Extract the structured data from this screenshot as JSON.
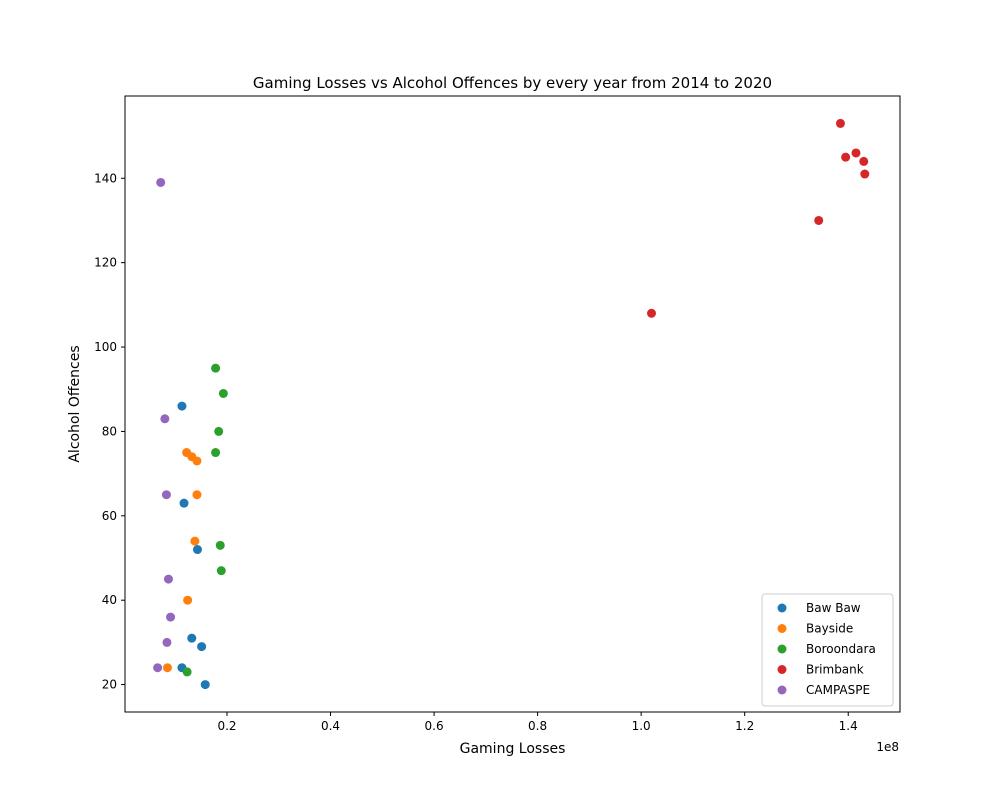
{
  "chart_data": {
    "type": "scatter",
    "title": "Gaming Losses vs Alcohol Offences by every year from 2014 to 2020",
    "xlabel": "Gaming Losses",
    "ylabel": "Alcohol Offences",
    "x_offset_label": "1e8",
    "x_scale": 100000000,
    "xlim": [
      0.003,
      1.5
    ],
    "ylim": [
      13.5,
      159.5
    ],
    "x_ticks": [
      0.2,
      0.4,
      0.6,
      0.8,
      1.0,
      1.2,
      1.4
    ],
    "x_tick_labels": [
      "0.2",
      "0.4",
      "0.6",
      "0.8",
      "1.0",
      "1.2",
      "1.4"
    ],
    "y_ticks": [
      20,
      40,
      60,
      80,
      100,
      120,
      140
    ],
    "y_tick_labels": [
      "20",
      "40",
      "60",
      "80",
      "100",
      "120",
      "140"
    ],
    "grid": false,
    "legend_position": "lower-right",
    "series": [
      {
        "name": "Baw Baw",
        "color": "#1f77b4",
        "points": [
          [
            0.113,
            86
          ],
          [
            0.117,
            63
          ],
          [
            0.143,
            52
          ],
          [
            0.132,
            31
          ],
          [
            0.151,
            29
          ],
          [
            0.113,
            24
          ],
          [
            0.158,
            20
          ]
        ]
      },
      {
        "name": "Bayside",
        "color": "#ff7f0e",
        "points": [
          [
            0.122,
            75
          ],
          [
            0.132,
            74
          ],
          [
            0.142,
            73
          ],
          [
            0.142,
            65
          ],
          [
            0.138,
            54
          ],
          [
            0.124,
            40
          ],
          [
            0.085,
            24
          ]
        ]
      },
      {
        "name": "Boroondara",
        "color": "#2ca02c",
        "points": [
          [
            0.178,
            95
          ],
          [
            0.193,
            89
          ],
          [
            0.184,
            80
          ],
          [
            0.178,
            75
          ],
          [
            0.187,
            53
          ],
          [
            0.189,
            47
          ],
          [
            0.123,
            23
          ]
        ]
      },
      {
        "name": "Brimbank",
        "color": "#d62728",
        "points": [
          [
            1.02,
            108
          ],
          [
            1.343,
            130
          ],
          [
            1.385,
            153
          ],
          [
            1.395,
            145
          ],
          [
            1.415,
            146
          ],
          [
            1.43,
            144
          ],
          [
            1.432,
            141
          ]
        ]
      },
      {
        "name": "CAMPASPE",
        "color": "#9467bd",
        "points": [
          [
            0.072,
            139
          ],
          [
            0.08,
            83
          ],
          [
            0.083,
            65
          ],
          [
            0.087,
            45
          ],
          [
            0.091,
            36
          ],
          [
            0.084,
            30
          ],
          [
            0.066,
            24
          ]
        ]
      }
    ]
  }
}
